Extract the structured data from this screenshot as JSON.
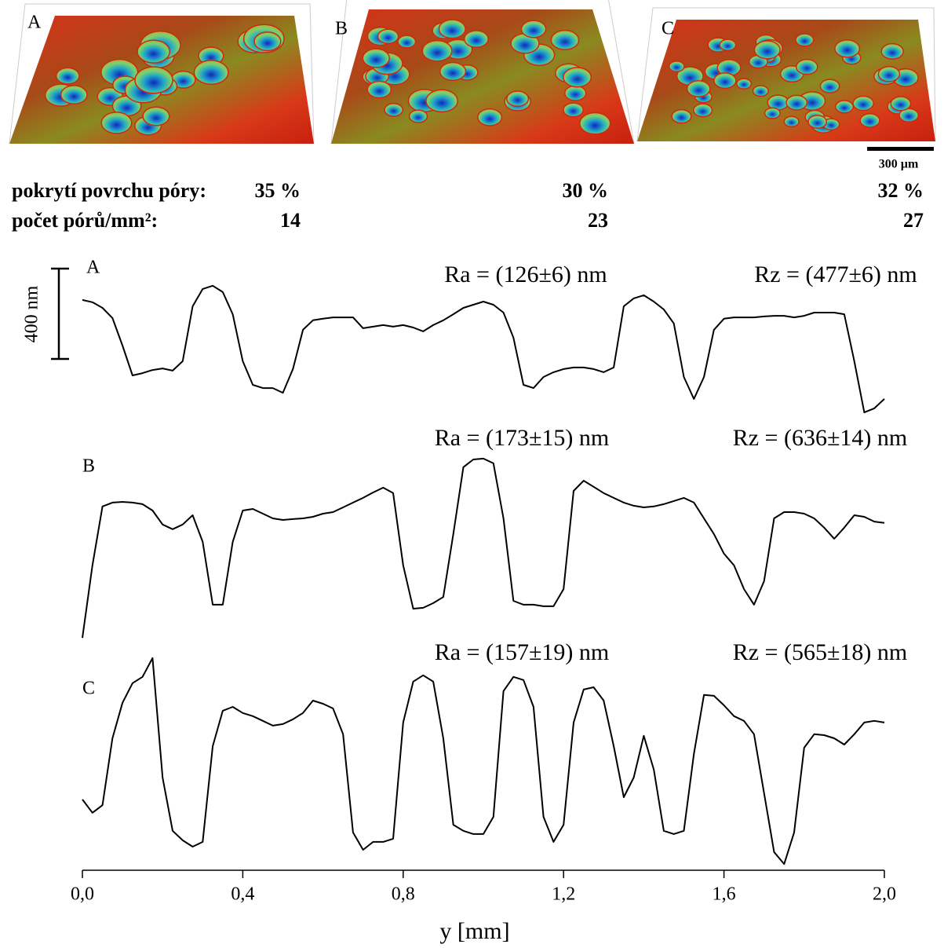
{
  "images": {
    "labels": [
      "A",
      "B",
      "C"
    ],
    "scale_bar": {
      "value": 300,
      "label": "300 µm"
    }
  },
  "stats": {
    "coverage_label": "pokrytí povrchu póry:",
    "coverage": [
      "35 %",
      "30 %",
      "32 %"
    ],
    "density_label": "počet pórů/mm²:",
    "density": [
      14,
      23,
      27
    ]
  },
  "chart_data": {
    "type": "line",
    "x": [
      0,
      0.025,
      0.05,
      0.075,
      0.1,
      0.125,
      0.15,
      0.175,
      0.2,
      0.225,
      0.25,
      0.275,
      0.3,
      0.325,
      0.35,
      0.375,
      0.4,
      0.425,
      0.45,
      0.475,
      0.5,
      0.525,
      0.55,
      0.575,
      0.6,
      0.625,
      0.65,
      0.675,
      0.7,
      0.725,
      0.75,
      0.775,
      0.8,
      0.825,
      0.85,
      0.875,
      0.9,
      0.925,
      0.95,
      0.975,
      1.0,
      1.025,
      1.05,
      1.075,
      1.1,
      1.125,
      1.15,
      1.175,
      1.2,
      1.225,
      1.25,
      1.275,
      1.3,
      1.325,
      1.35,
      1.375,
      1.4,
      1.425,
      1.45,
      1.475,
      1.5,
      1.525,
      1.55,
      1.575,
      1.6,
      1.625,
      1.65,
      1.675,
      1.7,
      1.725,
      1.75,
      1.775,
      1.8,
      1.825,
      1.85,
      1.875,
      1.9,
      1.925,
      1.95,
      1.975,
      2.0
    ],
    "series": [
      {
        "name": "A",
        "color": "#000000",
        "ra": "Ra = (126±6) nm",
        "rz": "Rz = (477±6) nm",
        "values": [
          515,
          505,
          480,
          435,
          313,
          181,
          191,
          205,
          212,
          202,
          244,
          487,
          564,
          578,
          550,
          452,
          244,
          139,
          125,
          125,
          104,
          209,
          383,
          425,
          432,
          438,
          438,
          438,
          390,
          397,
          404,
          397,
          404,
          393,
          376,
          404,
          425,
          452,
          480,
          494,
          508,
          494,
          459,
          348,
          139,
          125,
          174,
          195,
          209,
          216,
          216,
          209,
          195,
          216,
          487,
          522,
          536,
          508,
          473,
          411,
          174,
          77,
          174,
          383,
          432,
          438,
          438,
          438,
          442,
          445,
          445,
          438,
          445,
          459,
          459,
          459,
          452,
          244,
          17,
          35,
          77
        ]
      },
      {
        "name": "B",
        "color": "#000000",
        "ra": "Ra = (173±15) nm",
        "rz": "Rz = (636±14) nm",
        "values": [
          10,
          331,
          592,
          609,
          612,
          609,
          602,
          574,
          512,
          491,
          512,
          553,
          435,
          157,
          157,
          435,
          574,
          581,
          560,
          539,
          532,
          536,
          539,
          546,
          560,
          567,
          588,
          609,
          630,
          654,
          675,
          651,
          331,
          139,
          143,
          164,
          191,
          470,
          766,
          800,
          804,
          783,
          539,
          174,
          157,
          157,
          150,
          150,
          226,
          661,
          706,
          679,
          651,
          630,
          609,
          595,
          588,
          592,
          602,
          616,
          630,
          609,
          539,
          470,
          383,
          331,
          226,
          157,
          261,
          539,
          567,
          567,
          560,
          539,
          498,
          449,
          498,
          553,
          546,
          525,
          519
        ]
      },
      {
        "name": "C",
        "color": "#000000",
        "ra": "Ra = (157±19) nm",
        "rz": "Rz = (565±18) nm",
        "values": [
          303,
          244,
          278,
          574,
          731,
          818,
          846,
          929,
          400,
          164,
          122,
          94,
          115,
          539,
          696,
          713,
          686,
          672,
          651,
          630,
          637,
          658,
          686,
          741,
          727,
          706,
          592,
          157,
          80,
          115,
          115,
          129,
          644,
          825,
          853,
          825,
          574,
          191,
          164,
          150,
          150,
          226,
          783,
          846,
          832,
          713,
          226,
          115,
          191,
          644,
          790,
          800,
          741,
          539,
          313,
          400,
          585,
          435,
          164,
          150,
          164,
          505,
          766,
          762,
          720,
          672,
          651,
          592,
          331,
          70,
          17,
          157,
          532,
          592,
          588,
          574,
          546,
          592,
          644,
          651,
          644
        ]
      }
    ],
    "xlim": [
      0,
      2.0
    ],
    "xticks": [
      {
        "value": 0,
        "label": "0,0"
      },
      {
        "value": 0.4,
        "label": "0,4"
      },
      {
        "value": 0.8,
        "label": "0,8"
      },
      {
        "value": 1.2,
        "label": "1,2"
      },
      {
        "value": 1.6,
        "label": "1,6"
      },
      {
        "value": 2.0,
        "label": "2,0"
      }
    ],
    "xlabel": "y [mm]",
    "scale_bar": {
      "value": 400,
      "label": "400 nm"
    }
  }
}
